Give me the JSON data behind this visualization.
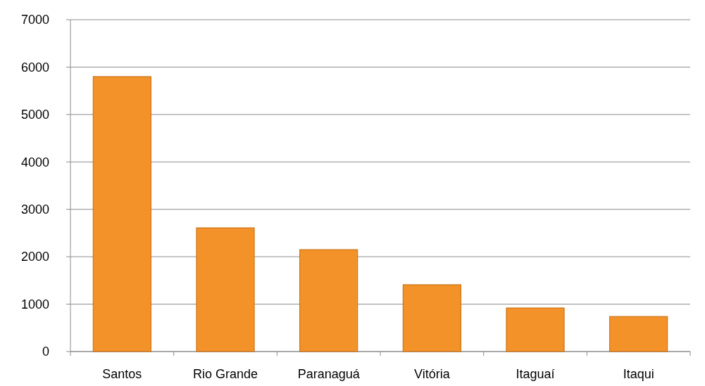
{
  "chart_data": {
    "type": "bar",
    "categories": [
      "Santos",
      "Rio Grande",
      "Paranaguá",
      "Vitória",
      "Itaguaí",
      "Itaqui"
    ],
    "values": [
      5800,
      2610,
      2150,
      1410,
      920,
      740
    ],
    "color": "#f39229",
    "ylim": [
      0,
      7000
    ],
    "yticks": [
      0,
      1000,
      2000,
      3000,
      4000,
      5000,
      6000,
      7000
    ],
    "grid": "y"
  }
}
